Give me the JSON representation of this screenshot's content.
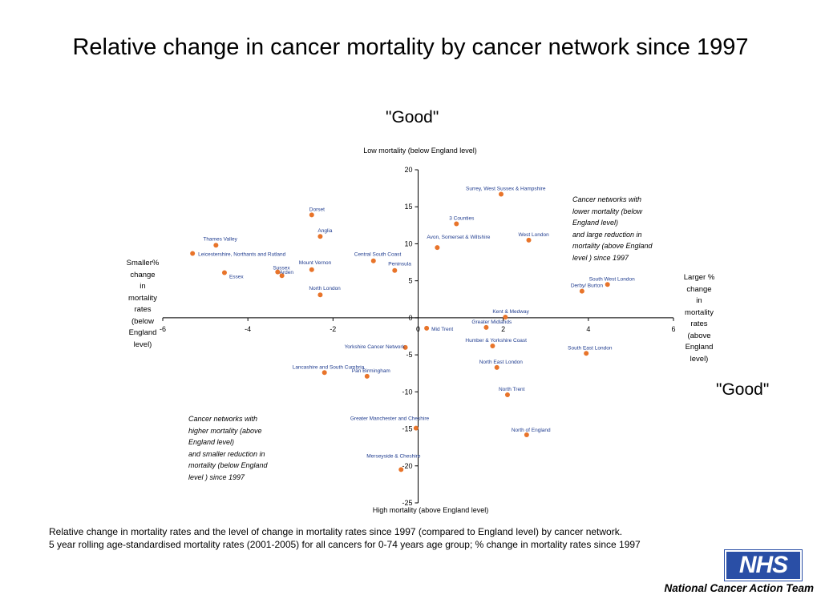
{
  "slide": {
    "title": "Relative change in cancer mortality by cancer network since 1997",
    "good_top": "\"Good\"",
    "good_right": "\"Good\"",
    "caption_line1": "Relative change in mortality rates and the level of change in mortality rates since 1997 (compared to England level) by cancer network.",
    "caption_line2": "5 year rolling age-standardised mortality rates (2001-2005) for all cancers for 0-74 years age group; % change in mortality rates since 1997",
    "logo_text": "NHS",
    "organisation": "National Cancer Action Team"
  },
  "chart_data": {
    "type": "scatter",
    "axis_top_caption": "Low mortality (below England level)",
    "axis_bottom_caption": "High mortality (above England level)",
    "left_caption": [
      "Smaller%",
      "change",
      "in",
      "mortality",
      "rates",
      "(below",
      "England",
      "level)"
    ],
    "right_caption": [
      "Larger %",
      "change",
      "in",
      "mortality",
      "rates",
      "(above",
      "England",
      "level)"
    ],
    "note_upper_right": [
      "Cancer networks with",
      "lower mortality (below",
      "England level)",
      "and large reduction in",
      "mortality (above England",
      "level ) since 1997"
    ],
    "note_lower_left": [
      "Cancer networks with",
      "higher mortality (above",
      "England level)",
      "and smaller reduction in",
      "mortality (below England",
      "level ) since 1997"
    ],
    "xlim": [
      -6,
      6
    ],
    "ylim": [
      -25,
      20
    ],
    "x_ticks": [
      -6,
      -4,
      -2,
      0,
      2,
      4,
      6
    ],
    "y_ticks": [
      20,
      15,
      10,
      5,
      0,
      -5,
      -10,
      -15,
      -20,
      -25
    ],
    "grid": false,
    "marker_color": "#e8742a",
    "label_color": "#1f3c8f",
    "points": [
      {
        "name": "Surrey, West Sussex & Hampshire",
        "x": 1.95,
        "y": 16.7
      },
      {
        "name": "Dorset",
        "x": -2.5,
        "y": 13.9
      },
      {
        "name": "3 Counties",
        "x": 0.9,
        "y": 12.7
      },
      {
        "name": "Anglia",
        "x": -2.3,
        "y": 11.0
      },
      {
        "name": "West London",
        "x": 2.6,
        "y": 10.5
      },
      {
        "name": "Thames Valley",
        "x": -4.75,
        "y": 9.8
      },
      {
        "name": "Avon, Somerset & Wiltshire",
        "x": 0.45,
        "y": 9.5
      },
      {
        "name": "Leicestershire, Northants and Rutland",
        "x": -5.3,
        "y": 8.7
      },
      {
        "name": "Central South Coast",
        "x": -1.05,
        "y": 7.7
      },
      {
        "name": "Mount Vernon",
        "x": -2.5,
        "y": 6.5
      },
      {
        "name": "Peninsula",
        "x": -0.55,
        "y": 6.4
      },
      {
        "name": "Sussex",
        "x": -3.3,
        "y": 6.2
      },
      {
        "name": "Arden",
        "x": -3.2,
        "y": 5.7
      },
      {
        "name": "Essex",
        "x": -4.55,
        "y": 6.1
      },
      {
        "name": "North London",
        "x": -2.3,
        "y": 3.1
      },
      {
        "name": "South West London",
        "x": 4.45,
        "y": 4.5
      },
      {
        "name": "Derby/ Burton",
        "x": 3.85,
        "y": 3.6
      },
      {
        "name": "Kent & Medway",
        "x": 2.05,
        "y": 0.1
      },
      {
        "name": "Greater Midlands",
        "x": 1.6,
        "y": -1.3
      },
      {
        "name": "Mid Trent",
        "x": 0.2,
        "y": -1.4
      },
      {
        "name": "Humber & Yorkshire Coast",
        "x": 1.75,
        "y": -3.8
      },
      {
        "name": "Yorkshire Cancer Network",
        "x": -0.3,
        "y": -4.0
      },
      {
        "name": "South East London",
        "x": 3.95,
        "y": -4.8
      },
      {
        "name": "North East London",
        "x": 1.85,
        "y": -6.7
      },
      {
        "name": "Lancashire and South Cumbria",
        "x": -2.2,
        "y": -7.4
      },
      {
        "name": "Pan Birmingham",
        "x": -1.2,
        "y": -7.9
      },
      {
        "name": "North Trent",
        "x": 2.1,
        "y": -10.4
      },
      {
        "name": "Greater Manchester and Cheshire",
        "x": -0.05,
        "y": -14.9
      },
      {
        "name": "North of England",
        "x": 2.55,
        "y": -15.8
      },
      {
        "name": "Merseyside & Cheshire",
        "x": -0.4,
        "y": -20.5
      }
    ]
  }
}
